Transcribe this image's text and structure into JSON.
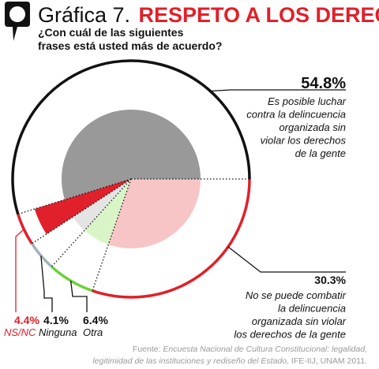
{
  "header": {
    "title_prefix": "Gráfica 7.",
    "title_main": "RESPETO A LOS DERECHOS",
    "subtitle_line1": "¿Con cuál de las siguientes",
    "subtitle_line2": "frases está usted más de acuerdo?"
  },
  "colors": {
    "accent_red": "#e0202a",
    "gray_main": "#999999",
    "pink_light": "#f7c5c5",
    "green": "#6ad13a",
    "green_light": "#d9f5c8",
    "gray_light": "#e4e4e4",
    "blue_gray": "#9fb3ba"
  },
  "chart_data": {
    "type": "pie",
    "title": "RESPETO A LOS DERECHOS",
    "slices": [
      {
        "label": "Es posible luchar contra la delincuencia organizada sin violar los derechos de la gente",
        "value": 54.8,
        "value_text": "54.8%",
        "desc_lines": [
          "Es posible luchar",
          "contra la delincuencia",
          "organizada sin",
          "violar los derechos",
          "de la gente"
        ]
      },
      {
        "label": "No se puede combatir la delincuencia organizada sin violar los derechos de la gente",
        "value": 30.3,
        "value_text": "30.3%",
        "desc_lines": [
          "No se puede combatir",
          "la delincuencia",
          "organizada sin violar",
          "los derechos de la gente"
        ]
      },
      {
        "label": "Otra",
        "value": 6.4,
        "value_text": "6.4%"
      },
      {
        "label": "Ninguna",
        "value": 4.1,
        "value_text": "4.1%"
      },
      {
        "label": "NS/NC",
        "value": 4.4,
        "value_text": "4.4%"
      }
    ]
  },
  "source": {
    "lead": "Fuente: ",
    "title_italic_1": "Encuesta Nacional de Cultura Constitucional: legalidad,",
    "title_italic_2": "legitimidad de las instituciones y rediseño del Estado,",
    "tail": " IFE-IIJ, UNAM 2011."
  }
}
